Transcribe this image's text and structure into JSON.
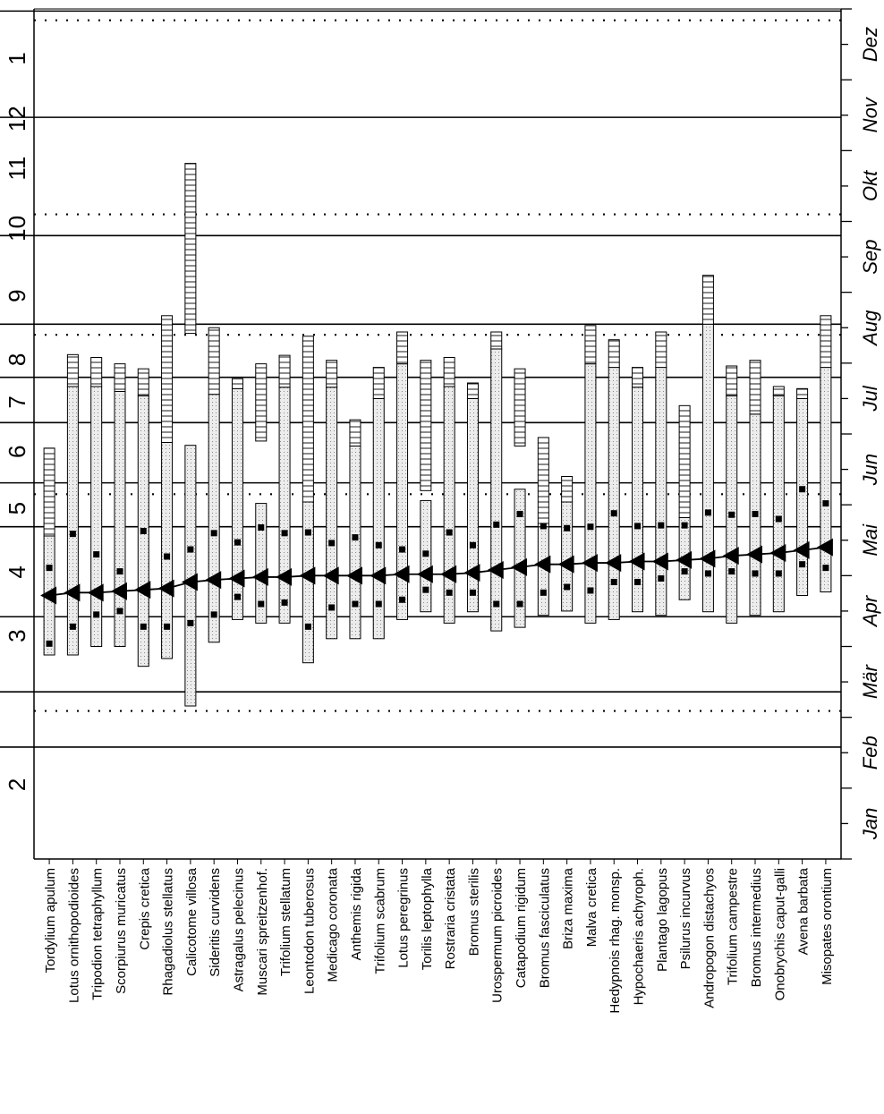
{
  "chart_data": {
    "type": "phenology-diagram",
    "title": "",
    "xlabel": "",
    "ylabel": "",
    "colors": {
      "line": "#000000",
      "phase_fill": "#e8e8e8"
    },
    "month_axis": {
      "labels": [
        "Jan",
        "Feb",
        "Mär",
        "Apr",
        "Mai",
        "Jun",
        "Jul",
        "Aug",
        "Sep",
        "Okt",
        "Nov",
        "Dez"
      ],
      "range": [
        1,
        13
      ]
    },
    "period_axis": {
      "labels": [
        "1",
        "12",
        "11",
        "10",
        "9",
        "8",
        "7",
        "6",
        "5",
        "4",
        "3",
        "2"
      ],
      "range": [
        1,
        13
      ],
      "boundaries_solid": [
        2.58,
        3.36,
        4.42,
        5.69,
        6.31,
        7.16,
        7.8,
        8.55,
        9.8,
        11.47,
        12.97
      ],
      "boundaries_dotted": [
        3.09,
        6.15,
        8.4,
        10.1,
        12.84
      ]
    },
    "species": [
      {
        "name": "Tordylium apulum",
        "lower": [
          3.88,
          5.56
        ],
        "upper": [
          5.56,
          6.8
        ],
        "upper_pattern": "lines",
        "markers": [
          4.04,
          5.11
        ],
        "mean": 4.72
      },
      {
        "name": "Lotus ornithopodioides",
        "lower": [
          3.88,
          7.67
        ],
        "upper": [
          7.67,
          8.12
        ],
        "upper_pattern": "lines",
        "markers": [
          4.28,
          5.59
        ],
        "mean": 4.76
      },
      {
        "name": "Tripodion tetraphyllum",
        "lower": [
          4.0,
          7.67
        ],
        "upper": [
          7.67,
          8.08
        ],
        "upper_pattern": "lines",
        "markers": [
          4.45,
          5.3
        ],
        "mean": 4.76
      },
      {
        "name": "Scorpiurus muricatus",
        "lower": [
          4.0,
          7.6
        ],
        "upper": [
          7.6,
          7.99
        ],
        "upper_pattern": "lines",
        "markers": [
          4.5,
          5.06
        ],
        "mean": 4.78
      },
      {
        "name": "Crepis cretica",
        "lower": [
          3.72,
          7.54
        ],
        "upper": [
          7.54,
          7.92
        ],
        "upper_pattern": "lines",
        "markers": [
          4.28,
          5.63
        ],
        "mean": 4.8
      },
      {
        "name": "Rhagadiolus stellatus",
        "lower": [
          3.83,
          6.88
        ],
        "upper": [
          6.88,
          8.67
        ],
        "upper_pattern": "lines",
        "markers": [
          4.28,
          5.27
        ],
        "mean": 4.82
      },
      {
        "name": "Calicotome villosa",
        "lower": [
          3.16,
          6.84
        ],
        "upper": [
          8.42,
          10.82
        ],
        "upper_pattern": "lines",
        "markers": [
          4.33,
          5.37
        ],
        "mean": 4.91
      },
      {
        "name": "Sideritis curvidens",
        "lower": [
          4.06,
          7.56
        ],
        "upper": [
          7.56,
          8.5
        ],
        "upper_pattern": "lines",
        "markers": [
          4.45,
          5.6
        ],
        "mean": 4.94
      },
      {
        "name": "Astragalus pelecinus",
        "lower": [
          4.38,
          7.64
        ],
        "upper": [
          7.64,
          7.78
        ],
        "upper_pattern": "lines",
        "markers": [
          4.7,
          5.47
        ],
        "mean": 4.96
      },
      {
        "name": "Muscari spreitzenhof.",
        "lower": [
          4.33,
          6.02
        ],
        "upper": [
          6.9,
          7.99
        ],
        "upper_pattern": "lines",
        "markers": [
          4.6,
          5.68
        ],
        "mean": 4.98
      },
      {
        "name": "Trifolium stellatum",
        "lower": [
          4.33,
          7.66
        ],
        "upper": [
          7.66,
          8.11
        ],
        "upper_pattern": "lines",
        "markers": [
          4.62,
          5.6
        ],
        "mean": 4.98
      },
      {
        "name": "Leontodon tuberosus",
        "lower": [
          3.77,
          6.04
        ],
        "upper": [
          6.04,
          8.38
        ],
        "upper_pattern": "lines",
        "markers": [
          4.28,
          5.61
        ],
        "mean": 5.0
      },
      {
        "name": "Medicago coronata",
        "lower": [
          4.11,
          7.66
        ],
        "upper": [
          7.66,
          8.04
        ],
        "upper_pattern": "lines",
        "markers": [
          4.55,
          5.46
        ],
        "mean": 5.0
      },
      {
        "name": "Anthemis rigida",
        "lower": [
          4.11,
          6.83
        ],
        "upper": [
          6.83,
          7.2
        ],
        "upper_pattern": "lines",
        "markers": [
          4.6,
          5.54
        ],
        "mean": 5.0
      },
      {
        "name": "Trifolium scabrum",
        "lower": [
          4.11,
          7.5
        ],
        "upper": [
          7.5,
          7.94
        ],
        "upper_pattern": "lines",
        "markers": [
          4.6,
          5.43
        ],
        "mean": 5.0
      },
      {
        "name": "Lotus peregrinus",
        "lower": [
          4.38,
          7.99
        ],
        "upper": [
          7.99,
          8.44
        ],
        "upper_pattern": "lines",
        "markers": [
          4.66,
          5.37
        ],
        "mean": 5.02
      },
      {
        "name": "Torilis leptophylla",
        "lower": [
          4.49,
          6.06
        ],
        "upper": [
          6.2,
          8.04
        ],
        "upper_pattern": "lines",
        "markers": [
          4.8,
          5.31
        ],
        "mean": 5.02
      },
      {
        "name": "Rostraria cristata",
        "lower": [
          4.33,
          7.67
        ],
        "upper": [
          7.67,
          8.08
        ],
        "upper_pattern": "lines",
        "markers": [
          4.76,
          5.61
        ],
        "mean": 5.02
      },
      {
        "name": "Bromus sterilis",
        "lower": [
          4.49,
          7.5
        ],
        "upper": [
          7.5,
          7.72
        ],
        "upper_pattern": "lines",
        "markers": [
          4.76,
          5.43
        ],
        "mean": 5.04
      },
      {
        "name": "Urospermum picroides",
        "lower": [
          4.22,
          8.2
        ],
        "upper": [
          8.2,
          8.44
        ],
        "upper_pattern": "lines",
        "markers": [
          4.6,
          5.72
        ],
        "mean": 5.08
      },
      {
        "name": "Catapodium rigidum",
        "lower": [
          4.27,
          6.22
        ],
        "upper": [
          6.83,
          7.92
        ],
        "upper_pattern": "lines",
        "markers": [
          4.6,
          5.87
        ],
        "mean": 5.12
      },
      {
        "name": "Bromus fasciculatus",
        "lower": [
          4.44,
          5.69
        ],
        "upper": [
          5.69,
          6.95
        ],
        "upper_pattern": "lines",
        "markers": [
          4.76,
          5.7
        ],
        "mean": 5.16
      },
      {
        "name": "Briza maxima",
        "lower": [
          4.5,
          6.04
        ],
        "upper": [
          6.04,
          6.4
        ],
        "upper_pattern": "lines",
        "markers": [
          4.84,
          5.67
        ],
        "mean": 5.16
      },
      {
        "name": "Malva cretica",
        "lower": [
          4.33,
          7.99
        ],
        "upper": [
          7.99,
          8.53
        ],
        "upper_pattern": "lines",
        "markers": [
          4.79,
          5.69
        ],
        "mean": 5.18
      },
      {
        "name": "Hedypnois rhag. monsp.",
        "lower": [
          4.38,
          7.94
        ],
        "upper": [
          7.94,
          8.33
        ],
        "upper_pattern": "lines",
        "markers": [
          4.91,
          5.88
        ],
        "mean": 5.18
      },
      {
        "name": "Hypochaeris achyroph.",
        "lower": [
          4.49,
          7.66
        ],
        "upper": [
          7.66,
          7.94
        ],
        "upper_pattern": "lines",
        "markers": [
          4.91,
          5.7
        ],
        "mean": 5.2
      },
      {
        "name": "Plantago lagopus",
        "lower": [
          4.44,
          7.94
        ],
        "upper": [
          7.94,
          8.44
        ],
        "upper_pattern": "lines",
        "markers": [
          4.96,
          5.71
        ],
        "mean": 5.2
      },
      {
        "name": "Psilurus incurvus",
        "lower": [
          4.66,
          5.82
        ],
        "upper": [
          5.82,
          7.4
        ],
        "upper_pattern": "lines",
        "markers": [
          5.06,
          5.71
        ],
        "mean": 5.22
      },
      {
        "name": "Andropogon distachyos",
        "lower": [
          4.49,
          8.55
        ],
        "upper": [
          8.55,
          9.24
        ],
        "upper_pattern": "lines",
        "markers": [
          5.03,
          5.89
        ],
        "mean": 5.24
      },
      {
        "name": "Trifolium campestre",
        "lower": [
          4.33,
          7.54
        ],
        "upper": [
          7.54,
          7.96
        ],
        "upper_pattern": "lines",
        "markers": [
          5.06,
          5.86
        ],
        "mean": 5.28
      },
      {
        "name": "Bromus intermedius",
        "lower": [
          4.44,
          7.28
        ],
        "upper": [
          7.28,
          8.04
        ],
        "upper_pattern": "lines",
        "markers": [
          5.03,
          5.87
        ],
        "mean": 5.3
      },
      {
        "name": "Onobrychis caput-galli",
        "lower": [
          4.49,
          7.54
        ],
        "upper": [
          7.54,
          7.67
        ],
        "upper_pattern": "lines",
        "markers": [
          5.03,
          5.8
        ],
        "mean": 5.32
      },
      {
        "name": "Avena barbata",
        "lower": [
          4.72,
          7.5
        ],
        "upper": [
          7.5,
          7.64
        ],
        "upper_pattern": "lines",
        "markers": [
          5.16,
          6.22
        ],
        "mean": 5.36
      },
      {
        "name": "Misopates orontium",
        "lower": [
          4.77,
          7.94
        ],
        "upper": [
          7.94,
          8.67
        ],
        "upper_pattern": "lines",
        "markers": [
          5.11,
          6.02
        ],
        "mean": 5.4
      }
    ]
  }
}
